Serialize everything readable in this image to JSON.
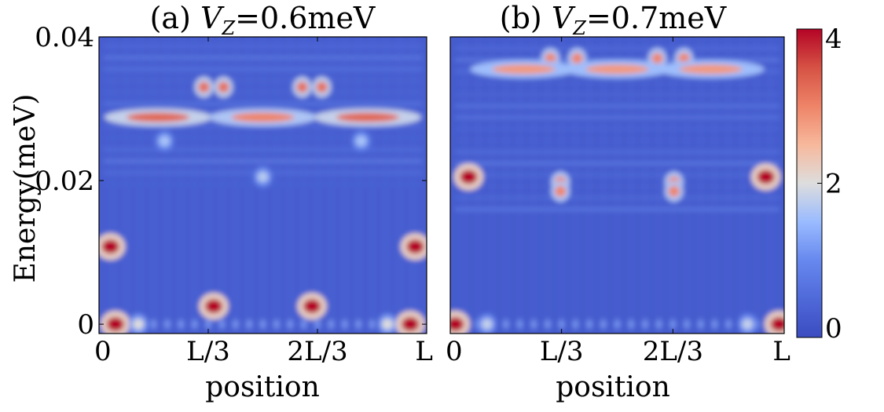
{
  "chart_data": [
    {
      "type": "heatmap",
      "title_prefix": "(a) ",
      "title_var": "V",
      "title_sub": "Z",
      "title_value": "=0.6meV",
      "xlabel": "position",
      "ylabel": "Energy(meV)",
      "x_tick_labels": [
        "0",
        "L/3",
        "2L/3",
        "L"
      ],
      "x_tick_values": [
        0,
        0.3333,
        0.6667,
        1.0
      ],
      "xlim": [
        0,
        1
      ],
      "y_tick_labels": [
        "0",
        "0.02",
        "0.04"
      ],
      "y_tick_values": [
        0,
        0.02,
        0.04
      ],
      "ylim": [
        -0.0013,
        0.04
      ],
      "background_level": 0.3,
      "blobs": [
        {
          "x": 0.05,
          "y": 0.0,
          "value": 4.0
        },
        {
          "x": 0.12,
          "y": 0.0,
          "value": 2.0
        },
        {
          "x": 0.88,
          "y": 0.0,
          "value": 2.0
        },
        {
          "x": 0.95,
          "y": 0.0,
          "value": 4.0
        },
        {
          "x": 0.035,
          "y": 0.0108,
          "value": 4.0
        },
        {
          "x": 0.965,
          "y": 0.0108,
          "value": 4.0
        },
        {
          "x": 0.35,
          "y": 0.0025,
          "value": 4.0
        },
        {
          "x": 0.65,
          "y": 0.0025,
          "value": 4.0
        },
        {
          "x": 0.32,
          "y": 0.033,
          "value": 3.2
        },
        {
          "x": 0.38,
          "y": 0.033,
          "value": 3.2
        },
        {
          "x": 0.62,
          "y": 0.033,
          "value": 3.2
        },
        {
          "x": 0.68,
          "y": 0.033,
          "value": 3.2
        },
        {
          "x": 0.18,
          "y": 0.0288,
          "value": 3.3
        },
        {
          "x": 0.5,
          "y": 0.0288,
          "value": 3.0
        },
        {
          "x": 0.82,
          "y": 0.0288,
          "value": 3.3
        },
        {
          "x": 0.5,
          "y": 0.0205,
          "value": 1.7
        },
        {
          "x": 0.2,
          "y": 0.0255,
          "value": 1.6
        },
        {
          "x": 0.8,
          "y": 0.0255,
          "value": 1.6
        }
      ]
    },
    {
      "type": "heatmap",
      "title_prefix": "(b) ",
      "title_var": "V",
      "title_sub": "Z",
      "title_value": "=0.7meV",
      "xlabel": "position",
      "x_tick_labels": [
        "0",
        "L/3",
        "2L/3",
        "L"
      ],
      "x_tick_values": [
        0,
        0.3333,
        0.6667,
        1.0
      ],
      "xlim": [
        0,
        1
      ],
      "y_tick_labels": [],
      "ylim": [
        -0.0013,
        0.04
      ],
      "background_level": 0.25,
      "blobs": [
        {
          "x": 0.055,
          "y": 0.0205,
          "value": 4.0
        },
        {
          "x": 0.945,
          "y": 0.0205,
          "value": 4.0
        },
        {
          "x": 0.015,
          "y": 0.0,
          "value": 4.0
        },
        {
          "x": 0.985,
          "y": 0.0,
          "value": 4.0
        },
        {
          "x": 0.33,
          "y": 0.0198,
          "value": 3.0
        },
        {
          "x": 0.33,
          "y": 0.0185,
          "value": 3.0
        },
        {
          "x": 0.67,
          "y": 0.0198,
          "value": 3.0
        },
        {
          "x": 0.67,
          "y": 0.0185,
          "value": 3.0
        },
        {
          "x": 0.3,
          "y": 0.037,
          "value": 3.0
        },
        {
          "x": 0.38,
          "y": 0.037,
          "value": 3.0
        },
        {
          "x": 0.62,
          "y": 0.037,
          "value": 3.0
        },
        {
          "x": 0.7,
          "y": 0.037,
          "value": 3.0
        },
        {
          "x": 0.22,
          "y": 0.0355,
          "value": 2.8
        },
        {
          "x": 0.5,
          "y": 0.0355,
          "value": 2.8
        },
        {
          "x": 0.78,
          "y": 0.0355,
          "value": 2.8
        },
        {
          "x": 0.11,
          "y": 0.0,
          "value": 1.8
        },
        {
          "x": 0.89,
          "y": 0.0,
          "value": 1.8
        }
      ]
    }
  ],
  "colorbar": {
    "colormap": "coolwarm",
    "vmin": 0,
    "vmax": 4,
    "tick_labels": [
      "0",
      "2",
      "4"
    ],
    "tick_values": [
      0,
      2,
      4
    ],
    "colors": {
      "low": "#3b4cc0",
      "mid": "#dddddd",
      "high": "#b40426"
    }
  }
}
